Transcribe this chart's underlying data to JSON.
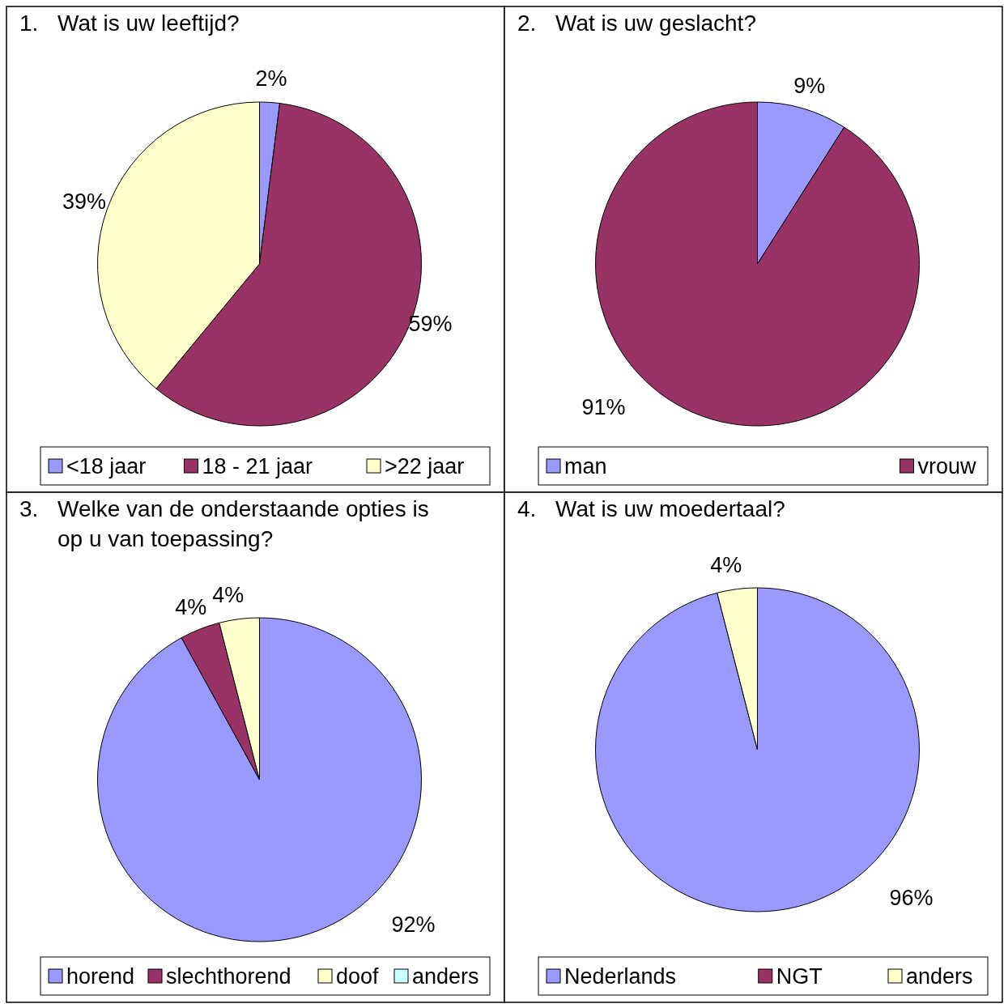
{
  "chart_data": [
    {
      "type": "pie",
      "title": "1. Wat is uw leeftijd?",
      "categories": [
        "<18 jaar",
        "18 - 21 jaar",
        ">22 jaar"
      ],
      "values": [
        2,
        59,
        39
      ],
      "colors": [
        "#9999ff",
        "#993366",
        "#ffffcc"
      ],
      "value_labels": [
        "2%",
        "59%",
        "39%"
      ],
      "legend": "bottom"
    },
    {
      "type": "pie",
      "title": "2. Wat is uw geslacht?",
      "categories": [
        "man",
        "vrouw"
      ],
      "values": [
        9,
        91
      ],
      "colors": [
        "#9999ff",
        "#993366"
      ],
      "value_labels": [
        "9%",
        "91%"
      ],
      "legend": "bottom"
    },
    {
      "type": "pie",
      "title": "3. Welke van de onderstaande opties is op u van toepassing?",
      "categories": [
        "horend",
        "slechthorend",
        "doof",
        "anders"
      ],
      "values": [
        92,
        4,
        4,
        0
      ],
      "colors": [
        "#9999ff",
        "#993366",
        "#ffffcc",
        "#ccffff"
      ],
      "value_labels": [
        "92%",
        "4%",
        "4%",
        null
      ],
      "legend": "bottom"
    },
    {
      "type": "pie",
      "title": "4. Wat is uw moedertaal?",
      "categories": [
        "Nederlands",
        "NGT",
        "anders"
      ],
      "values": [
        96,
        0,
        4
      ],
      "colors": [
        "#9999ff",
        "#993366",
        "#ffffcc"
      ],
      "value_labels": [
        "96%",
        null,
        "4%"
      ],
      "legend": "bottom"
    }
  ]
}
